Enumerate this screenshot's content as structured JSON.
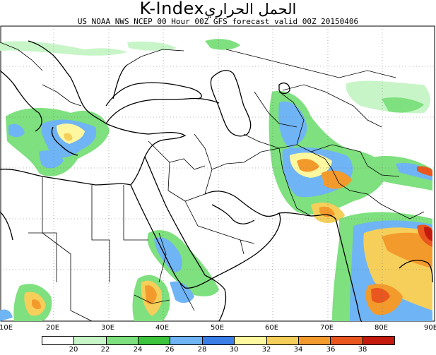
{
  "header": {
    "title": "K-Index",
    "title_arabic": "الحمل الحراري",
    "subtitle": "US NOAA NWS NCEP 00 Hour 00Z GFS forecast valid 00Z 20150406"
  },
  "map": {
    "region": "Middle East / Eastern Mediterranean / Central Asia",
    "longitude_labels": [
      "10E",
      "20E",
      "30E",
      "40E",
      "50E",
      "60E",
      "70E",
      "80E",
      "90E"
    ],
    "gridlines": "dotted"
  },
  "legend": {
    "levels": [
      "20",
      "22",
      "24",
      "26",
      "28",
      "30",
      "32",
      "34",
      "36",
      "38"
    ],
    "colors": [
      "#ffffff",
      "#c8f5c8",
      "#7ee07e",
      "#3cc43c",
      "#6fb4f5",
      "#3a7ee8",
      "#fdf7a0",
      "#f5cf5a",
      "#f39a2c",
      "#e9571e",
      "#c41a0e"
    ]
  }
}
